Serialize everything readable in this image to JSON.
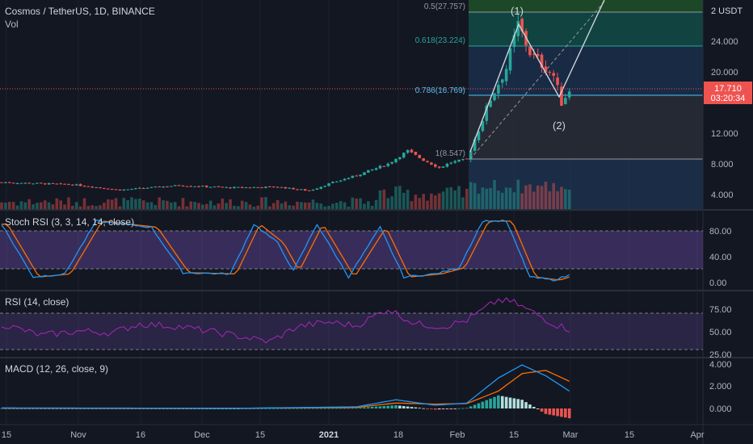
{
  "header": {
    "symbol_line": "Cosmos / TetherUS, 1D, BINANCE",
    "volume_label": "Vol"
  },
  "colors": {
    "background": "#131722",
    "grid": "#1e222d",
    "up": "#26a69a",
    "down": "#ef5350",
    "fib_band_top": "#1e5128",
    "fib_band_mid": "#124b46",
    "fib_band_low": "#1c3350",
    "fib_band_box": "#2a2e39",
    "stoch_k": "#2196f3",
    "stoch_d": "#ff6d00",
    "stoch_band": "#7e57c2",
    "rsi": "#9c27b0",
    "macd": "#2196f3",
    "signal": "#ff6d00"
  },
  "price_axis": {
    "ticks": [
      "24.000",
      "20.000",
      "12.000",
      "8.000",
      "4.000"
    ],
    "top_label": "2 USDT",
    "current_price": "17.710",
    "countdown": "03:20:34"
  },
  "fib_levels": [
    {
      "label": "0.5(27.757)",
      "value": 27.757
    },
    {
      "label": "0.618(23.224)",
      "value": 23.224
    },
    {
      "label": "0.786(16.769)",
      "value": 16.769
    },
    {
      "label": "1(8.547)",
      "value": 8.547
    }
  ],
  "wave_labels": [
    "(1)",
    "(2)"
  ],
  "time_axis": [
    "15",
    "Nov",
    "16",
    "Dec",
    "15",
    "2021",
    "18",
    "Feb",
    "15",
    "Mar",
    "15",
    "Apr"
  ],
  "stoch_rsi": {
    "title": "Stoch RSI (3, 3, 14, 14, close)",
    "ticks": [
      "80.00",
      "40.00",
      "0.00"
    ],
    "upper_band": 80,
    "lower_band": 20
  },
  "rsi": {
    "title": "RSI (14, close)",
    "ticks": [
      "75.00",
      "50.00",
      "25.00"
    ],
    "upper_band": 70,
    "lower_band": 30
  },
  "macd": {
    "title": "MACD (12, 26, close, 9)",
    "ticks": [
      "4.000",
      "2.000",
      "0.000"
    ]
  },
  "chart_data": {
    "type": "candlestick",
    "price_ylim": [
      2,
      30
    ],
    "price_anchors": [
      {
        "day": 0,
        "price": 5.6
      },
      {
        "day": 18,
        "price": 5.3
      },
      {
        "day": 30,
        "price": 4.6
      },
      {
        "day": 45,
        "price": 5.2
      },
      {
        "day": 58,
        "price": 4.9
      },
      {
        "day": 70,
        "price": 5.0
      },
      {
        "day": 78,
        "price": 4.5
      },
      {
        "day": 83,
        "price": 5.4
      },
      {
        "day": 90,
        "price": 6.5
      },
      {
        "day": 98,
        "price": 8.0
      },
      {
        "day": 103,
        "price": 9.7
      },
      {
        "day": 107,
        "price": 8.5
      },
      {
        "day": 111,
        "price": 7.5
      },
      {
        "day": 114,
        "price": 8.2
      },
      {
        "day": 118,
        "price": 8.6
      },
      {
        "day": 124,
        "price": 16.5
      },
      {
        "day": 128,
        "price": 20.5
      },
      {
        "day": 131,
        "price": 26.2
      },
      {
        "day": 134,
        "price": 22.5
      },
      {
        "day": 137,
        "price": 21.0
      },
      {
        "day": 140,
        "price": 19.5
      },
      {
        "day": 142,
        "price": 16.0
      },
      {
        "day": 144,
        "price": 17.7
      }
    ],
    "stoch_k_anchors": [
      {
        "day": 0,
        "v": 90
      },
      {
        "day": 8,
        "v": 5
      },
      {
        "day": 16,
        "v": 10
      },
      {
        "day": 24,
        "v": 95
      },
      {
        "day": 38,
        "v": 85
      },
      {
        "day": 46,
        "v": 12
      },
      {
        "day": 58,
        "v": 10
      },
      {
        "day": 64,
        "v": 90
      },
      {
        "day": 70,
        "v": 60
      },
      {
        "day": 74,
        "v": 15
      },
      {
        "day": 80,
        "v": 90
      },
      {
        "day": 88,
        "v": 5
      },
      {
        "day": 96,
        "v": 85
      },
      {
        "day": 102,
        "v": 5
      },
      {
        "day": 110,
        "v": 10
      },
      {
        "day": 116,
        "v": 20
      },
      {
        "day": 122,
        "v": 95
      },
      {
        "day": 128,
        "v": 95
      },
      {
        "day": 134,
        "v": 5
      },
      {
        "day": 140,
        "v": 0
      },
      {
        "day": 144,
        "v": 8
      }
    ],
    "rsi_anchors": [
      {
        "day": 0,
        "v": 58
      },
      {
        "day": 10,
        "v": 45
      },
      {
        "day": 20,
        "v": 50
      },
      {
        "day": 28,
        "v": 48
      },
      {
        "day": 35,
        "v": 58
      },
      {
        "day": 45,
        "v": 55
      },
      {
        "day": 55,
        "v": 48
      },
      {
        "day": 68,
        "v": 38
      },
      {
        "day": 75,
        "v": 55
      },
      {
        "day": 83,
        "v": 60
      },
      {
        "day": 90,
        "v": 56
      },
      {
        "day": 98,
        "v": 75
      },
      {
        "day": 105,
        "v": 58
      },
      {
        "day": 112,
        "v": 55
      },
      {
        "day": 118,
        "v": 62
      },
      {
        "day": 126,
        "v": 85
      },
      {
        "day": 130,
        "v": 82
      },
      {
        "day": 136,
        "v": 68
      },
      {
        "day": 140,
        "v": 58
      },
      {
        "day": 144,
        "v": 52
      }
    ],
    "macd_anchors": [
      {
        "day": 0,
        "m": 0.05,
        "s": 0.03
      },
      {
        "day": 60,
        "m": 0.02,
        "s": 0.02
      },
      {
        "day": 90,
        "m": 0.15,
        "s": 0.1
      },
      {
        "day": 100,
        "m": 0.8,
        "s": 0.5
      },
      {
        "day": 110,
        "m": 0.3,
        "s": 0.4
      },
      {
        "day": 118,
        "m": 0.5,
        "s": 0.45
      },
      {
        "day": 126,
        "m": 2.8,
        "s": 1.6
      },
      {
        "day": 132,
        "m": 4.0,
        "s": 3.2
      },
      {
        "day": 138,
        "m": 3.0,
        "s": 3.5
      },
      {
        "day": 144,
        "m": 1.6,
        "s": 2.5
      }
    ]
  }
}
